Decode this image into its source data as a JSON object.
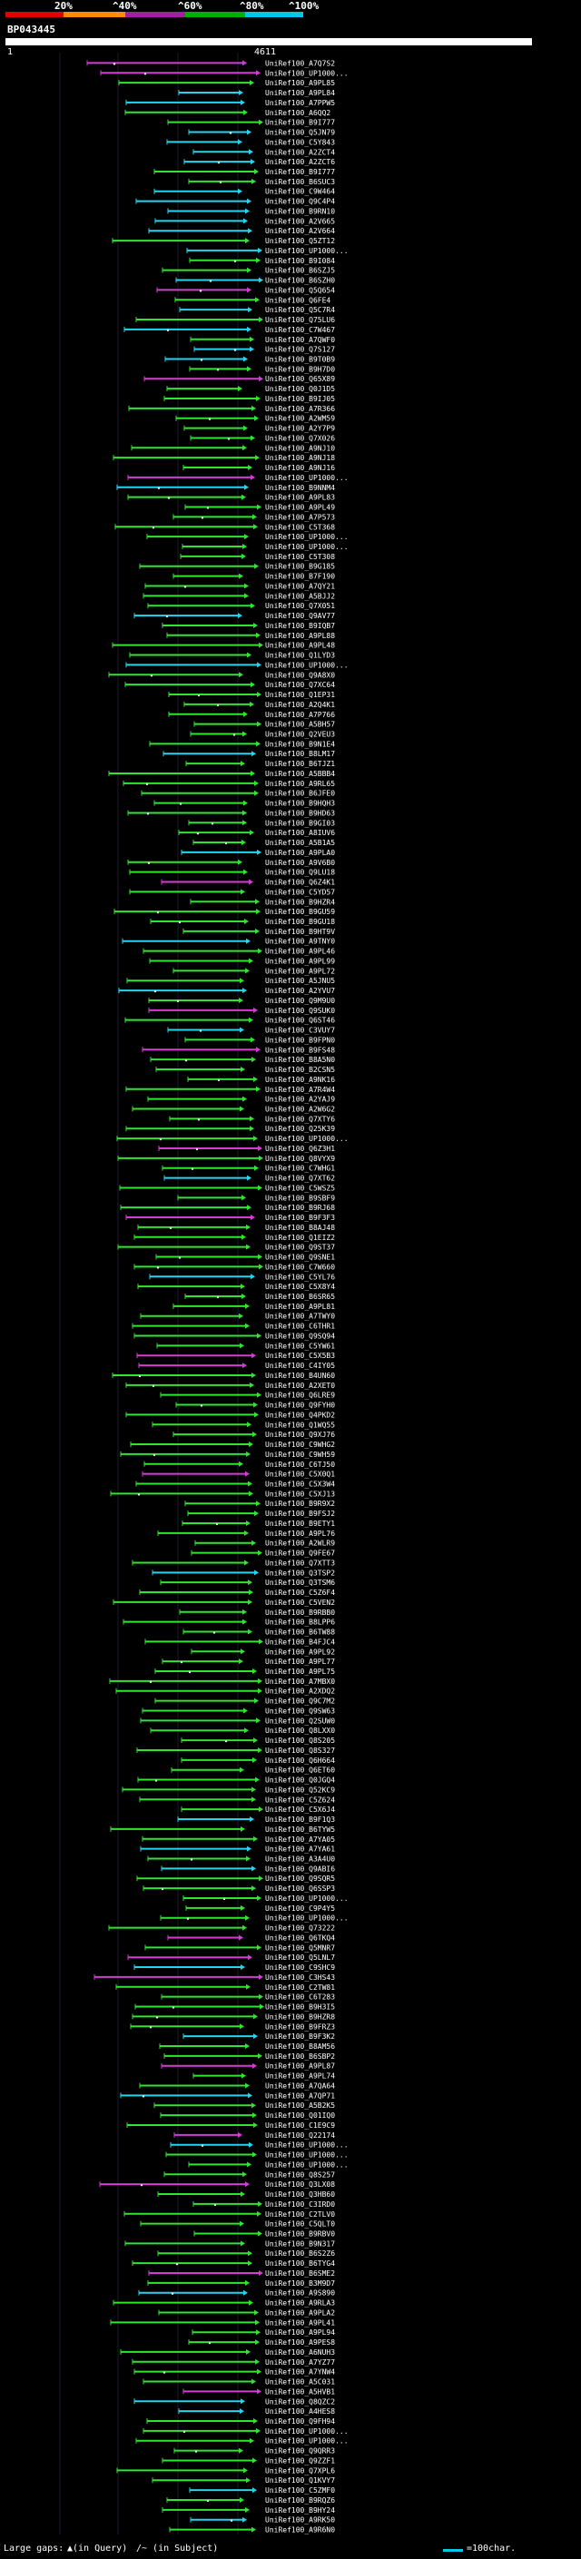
{
  "scale": {
    "ticks": [
      "20%",
      "^40%",
      "^60%",
      "^80%",
      "^100%"
    ],
    "colors": [
      "#e00000",
      "#ff8c00",
      "#a020a0",
      "#00b000",
      "#00c8e8"
    ]
  },
  "query": {
    "name": "BP043445",
    "start": "1",
    "end": "4611"
  },
  "hits": [
    "UniRef100_A7Q7S2",
    "UniRef100_UP1000...",
    "UniRef100_A9PL85",
    "UniRef100_A9PL84",
    "UniRef100_A7PPW5",
    "UniRef100_A6QQ2",
    "UniRef100_B9I777",
    "UniRef100_Q5JN79",
    "UniRef100_C5Y843",
    "UniRef100_A2ZCT4",
    "UniRef100_A2ZCT6",
    "UniRef100_B9I777",
    "UniRef100_B6SUC3",
    "UniRef100_C9W464",
    "UniRef100_Q9C4P4",
    "UniRef100_B9RN10",
    "UniRef100_A2V665",
    "UniRef100_A2V664",
    "UniRef100_Q5ZT12",
    "UniRef100_UP1000...",
    "UniRef100_B9I084",
    "UniRef100_B6SZJ5",
    "UniRef100_B6SZH0",
    "UniRef100_Q5Q654",
    "UniRef100_Q6FE4",
    "UniRef100_Q5C7R4",
    "UniRef100_Q75LU6",
    "UniRef100_C7W467",
    "UniRef100_A7QWF0",
    "UniRef100_Q7S127",
    "UniRef100_B9T0B9",
    "UniRef100_B9H7D0",
    "UniRef100_Q65X89",
    "UniRef100_Q0J1D5",
    "UniRef100_B9IJ05",
    "UniRef100_A7R366",
    "UniRef100_A2WM59",
    "UniRef100_A2Y7P9",
    "UniRef100_Q7X026",
    "UniRef100_A9NJ10",
    "UniRef100_A9NJ18",
    "UniRef100_A9NJ16",
    "UniRef100_UP1000...",
    "UniRef100_B9NNM4",
    "UniRef100_A9PL83",
    "UniRef100_A9PL49",
    "UniRef100_A7P573",
    "UniRef100_C5T368",
    "UniRef100_UP1000...",
    "UniRef100_UP1000...",
    "UniRef100_C5T308",
    "UniRef100_B9G185",
    "UniRef100_B7F190",
    "UniRef100_A7QY21",
    "UniRef100_A5BJJ2",
    "UniRef100_Q7X051",
    "UniRef100_Q9AV77",
    "UniRef100_B9IQB7",
    "UniRef100_A9PL88",
    "UniRef100_A9PL48",
    "UniRef100_Q1LYD3",
    "UniRef100_UP1000...",
    "UniRef100_Q9A8X0",
    "UniRef100_Q7XC64",
    "UniRef100_Q1EP31",
    "UniRef100_A2Q4K1",
    "UniRef100_A7P766",
    "UniRef100_A5BH57",
    "UniRef100_Q2VEU3",
    "UniRef100_B9N1E4",
    "UniRef100_B8LM17",
    "UniRef100_B6TJZ1",
    "UniRef100_A5BBB4",
    "UniRef100_A9RL65",
    "UniRef100_B6JFE0",
    "UniRef100_B9HQH3",
    "UniRef100_B9HD63",
    "UniRef100_B9GI03",
    "UniRef100_A8IUV6",
    "UniRef100_A5B1A5",
    "UniRef100_A9PLA0",
    "UniRef100_A9V6B0",
    "UniRef100_Q9LU18",
    "UniRef100_Q6Z4K1",
    "UniRef100_C5YD57",
    "UniRef100_B9HZR4",
    "UniRef100_B9GU59",
    "UniRef100_B9GU18",
    "UniRef100_B9HT9V",
    "UniRef100_A9TNY0",
    "UniRef100_A9PL46",
    "UniRef100_A9PL99",
    "UniRef100_A9PL72",
    "UniRef100_A5JNU5",
    "UniRef100_A2YVU7",
    "UniRef100_Q9M9U0",
    "UniRef100_Q9SUK0",
    "UniRef100_Q6ST46",
    "UniRef100_C3VUY7",
    "UniRef100_B9FPN0",
    "UniRef100_B9FS48",
    "UniRef100_B8A5N0",
    "UniRef100_B2CSN5",
    "UniRef100_A9NK16",
    "UniRef100_A7R4W4",
    "UniRef100_A2YAJ9",
    "UniRef100_A2W6G2",
    "UniRef100_Q7XTY6",
    "UniRef100_Q25K39",
    "UniRef100_UP1000...",
    "UniRef100_Q6Z3H1",
    "UniRef100_Q8VYX9",
    "UniRef100_C7WHG1",
    "UniRef100_Q7XT62",
    "UniRef100_C5WSZ5",
    "UniRef100_B9SBF9",
    "UniRef100_B9RJ68",
    "UniRef100_B9F3F3",
    "UniRef100_B8AJ48",
    "UniRef100_Q1EIZ2",
    "UniRef100_Q9ST37",
    "UniRef100_Q9SNE1",
    "UniRef100_C7W660",
    "UniRef100_C5YL76",
    "UniRef100_C5X8Y4",
    "UniRef100_B6SR65",
    "UniRef100_A9PL81",
    "UniRef100_A7TWY0",
    "UniRef100_C6THR1",
    "UniRef100_Q9SQ94",
    "UniRef100_C5YW61",
    "UniRef100_C5X5B3",
    "UniRef100_C4IY05",
    "UniRef100_B4UN60",
    "UniRef100_A2XET0",
    "UniRef100_Q6LRE9",
    "UniRef100_Q9FYH0",
    "UniRef100_Q4PKD2",
    "UniRef100_Q1WQ55",
    "UniRef100_Q9XJ76",
    "UniRef100_C9WHG2",
    "UniRef100_C9WH59",
    "UniRef100_C6TJ50",
    "UniRef100_C5X0Q1",
    "UniRef100_C5X3W4",
    "UniRef100_C5XJ13",
    "UniRef100_B9R9X2",
    "UniRef100_B9FSJ2",
    "UniRef100_B9ETY1",
    "UniRef100_A9PL76",
    "UniRef100_A2WLR9",
    "UniRef100_Q9FE67",
    "UniRef100_Q7XTT3",
    "UniRef100_Q3TSP2",
    "UniRef100_Q3TSM6",
    "UniRef100_C5Z6F4",
    "UniRef100_C5VEN2",
    "UniRef100_B9RBB0",
    "UniRef100_B8LPP6",
    "UniRef100_B6TW88",
    "UniRef100_B4FJC4",
    "UniRef100_A9PL92",
    "UniRef100_A9PL77",
    "UniRef100_A9PL75",
    "UniRef100_A7MBX0",
    "UniRef100_A2XDQ2",
    "UniRef100_Q9C7M2",
    "UniRef100_Q9SW63",
    "UniRef100_Q2SUW0",
    "UniRef100_Q8LXX0",
    "UniRef100_Q8S205",
    "UniRef100_Q8S327",
    "UniRef100_Q6H664",
    "UniRef100_Q6ET60",
    "UniRef100_Q0JGQ4",
    "UniRef100_Q52KC9",
    "UniRef100_C5Z624",
    "UniRef100_C5X6J4",
    "UniRef100_B9F1Q3",
    "UniRef100_B6TYW5",
    "UniRef100_A7YA05",
    "UniRef100_A7YA61",
    "UniRef100_A3A4U0",
    "UniRef100_Q9ABI6",
    "UniRef100_Q9SQR5",
    "UniRef100_Q6SSP3",
    "UniRef100_UP1000...",
    "UniRef100_C9P4Y5",
    "UniRef100_UP1000...",
    "UniRef100_Q73222",
    "UniRef100_Q6TKQ4",
    "UniRef100_Q5MNR7",
    "UniRef100_Q5LNL7",
    "UniRef100_C9SHC9",
    "UniRef100_C3HS43",
    "UniRef100_C2TW81",
    "UniRef100_C6T283",
    "UniRef100_B9H3I5",
    "UniRef100_B9HZR8",
    "UniRef100_B9FRZ3",
    "UniRef100_B9F3K2",
    "UniRef100_B8AM56",
    "UniRef100_B6SBP2",
    "UniRef100_A9PL87",
    "UniRef100_A9PL74",
    "UniRef100_A7QA64",
    "UniRef100_A7QP71",
    "UniRef100_A5B2K5",
    "UniRef100_Q01IQ0",
    "UniRef100_C1E9C9",
    "UniRef100_Q22174",
    "UniRef100_UP1000...",
    "UniRef100_UP1000...",
    "UniRef100_UP1000...",
    "UniRef100_Q8S257",
    "UniRef100_Q3LX08",
    "UniRef100_Q3HB60",
    "UniRef100_C3IRD0",
    "UniRef100_C2TLV0",
    "UniRef100_C5QLT0",
    "UniRef100_B9RBV0",
    "UniRef100_B9N317",
    "UniRef100_B6S2Z6",
    "UniRef100_B6TYG4",
    "UniRef100_B6SME2",
    "UniRef100_B3M9D7",
    "UniRef100_A9S890",
    "UniRef100_A9RLA3",
    "UniRef100_A9PLA2",
    "UniRef100_A9PL41",
    "UniRef100_A9PL94",
    "UniRef100_A9PES8",
    "UniRef100_A6NUH3",
    "UniRef100_A7YZ77",
    "UniRef100_A7YNW4",
    "UniRef100_A5C031",
    "UniRef100_A5HVB1",
    "UniRef100_Q8QZC2",
    "UniRef100_A4HES8",
    "UniRef100_Q9FH94",
    "UniRef100_UP1000...",
    "UniRef100_UP1000...",
    "UniRef100_Q9QRR3",
    "UniRef100_Q9ZZF1",
    "UniRef100_Q7XPL6",
    "UniRef100_Q1KVY7",
    "UniRef100_C5ZMF0",
    "UniRef100_B9RQZ6",
    "UniRef100_B9HY24",
    "UniRef100_A9RK50",
    "UniRef100_A9R6N0"
  ],
  "legend": {
    "large_gaps": "Large gaps: ",
    "in_query": "▲(in Query)",
    "in_subject": "/~ (in Subject)",
    "scale_label": "=100char."
  }
}
